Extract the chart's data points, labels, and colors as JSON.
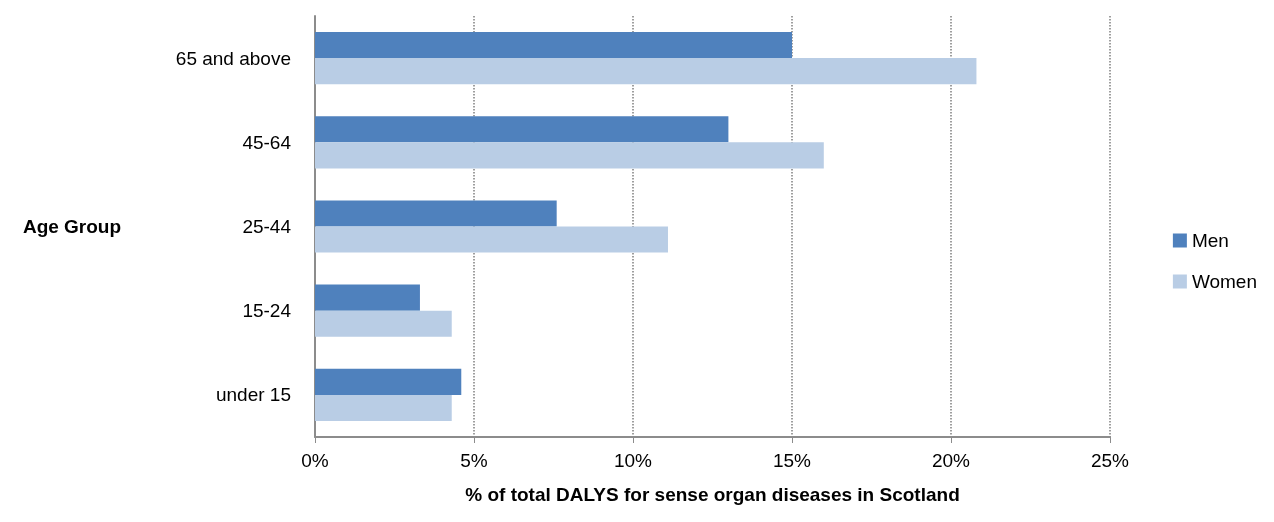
{
  "chart_data": {
    "type": "bar",
    "orientation": "horizontal",
    "xlabel": "% of total DALYS for sense organ diseases in Scotland",
    "ylabel": "Age Group",
    "categories": [
      "65 and above",
      "45-64",
      "25-44",
      "15-24",
      "under 15"
    ],
    "series": [
      {
        "name": "Men",
        "color": "#4f81bd",
        "values": [
          15.0,
          13.0,
          7.6,
          3.3,
          4.6
        ]
      },
      {
        "name": "Women",
        "color": "#b9cde5",
        "values": [
          20.8,
          16.0,
          11.1,
          4.3,
          4.3
        ]
      }
    ],
    "xlim": [
      0,
      25
    ],
    "xticks": [
      {
        "value": 0,
        "label": "0%"
      },
      {
        "value": 5,
        "label": "5%"
      },
      {
        "value": 10,
        "label": "10%"
      },
      {
        "value": 15,
        "label": "15%"
      },
      {
        "value": 20,
        "label": "20%"
      },
      {
        "value": 25,
        "label": "25%"
      }
    ],
    "grid": "x",
    "legend": "right"
  }
}
